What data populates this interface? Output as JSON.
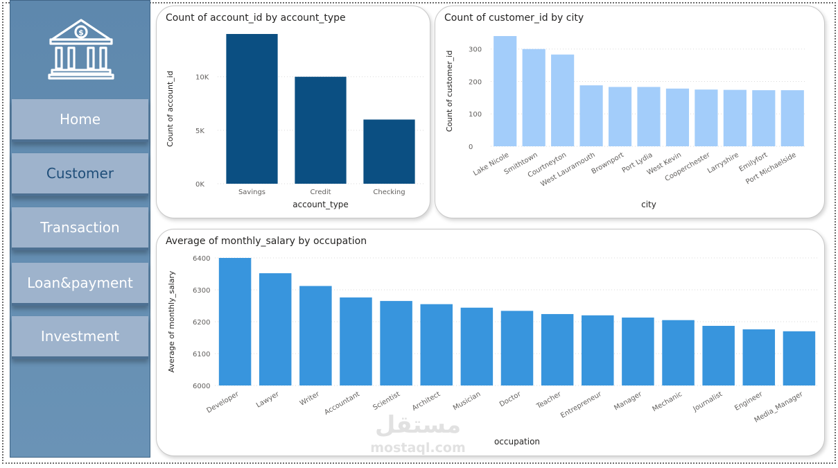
{
  "nav": {
    "items": [
      {
        "label": "Home",
        "active": false
      },
      {
        "label": "Customer",
        "active": true
      },
      {
        "label": "Transaction",
        "active": false
      },
      {
        "label": "Loan&payment",
        "active": false
      },
      {
        "label": "Investment",
        "active": false
      }
    ]
  },
  "watermark": {
    "arabic": "مستقل",
    "latin": "mostaql.com"
  },
  "colors": {
    "dark_bar": "#0b4f82",
    "light_bar": "#a3cdfa",
    "mid_bar": "#3895dd"
  },
  "chart_data": [
    {
      "type": "bar",
      "title": "Count of account_id by account_type",
      "xlabel": "account_type",
      "ylabel": "Count of account_id",
      "categories": [
        "Savings",
        "Credit",
        "Checking"
      ],
      "values": [
        14000,
        10000,
        6000
      ],
      "ylim": [
        0,
        14000
      ],
      "yticks": [
        0,
        5000,
        10000
      ],
      "ytick_labels": [
        "0K",
        "5K",
        "10K"
      ],
      "grid": true
    },
    {
      "type": "bar",
      "title": "Count of customer_id by city",
      "xlabel": "city",
      "ylabel": "Count of customer_id",
      "categories": [
        "Lake Nicole",
        "Smithtown",
        "Courtneyton",
        "West Lauramouth",
        "Brownport",
        "Port Lydia",
        "West Kevin",
        "Cooperchester",
        "Larryshire",
        "Emilyfort",
        "Port Michaelside"
      ],
      "values": [
        340,
        300,
        283,
        188,
        183,
        183,
        178,
        175,
        174,
        173,
        173
      ],
      "ylim": [
        0,
        340
      ],
      "yticks": [
        0,
        100,
        200,
        300
      ],
      "ytick_labels": [
        "0",
        "100",
        "200",
        "300"
      ],
      "grid": true
    },
    {
      "type": "bar",
      "title": "Average of monthly_salary by occupation",
      "xlabel": "occupation",
      "ylabel": "Average of monthly_salary",
      "categories": [
        "Developer",
        "Lawyer",
        "Writer",
        "Accountant",
        "Scientist",
        "Architect",
        "Musician",
        "Doctor",
        "Teacher",
        "Entrepreneur",
        "Manager",
        "Mechanic",
        "Journalist",
        "Engineer",
        "Media_Manager"
      ],
      "values": [
        6400,
        6352,
        6312,
        6276,
        6265,
        6255,
        6244,
        6234,
        6224,
        6220,
        6213,
        6205,
        6187,
        6176,
        6170
      ],
      "ylim": [
        6000,
        6400
      ],
      "yticks": [
        6000,
        6100,
        6200,
        6300,
        6400
      ],
      "ytick_labels": [
        "6000",
        "6100",
        "6200",
        "6300",
        "6400"
      ],
      "grid": true
    }
  ]
}
